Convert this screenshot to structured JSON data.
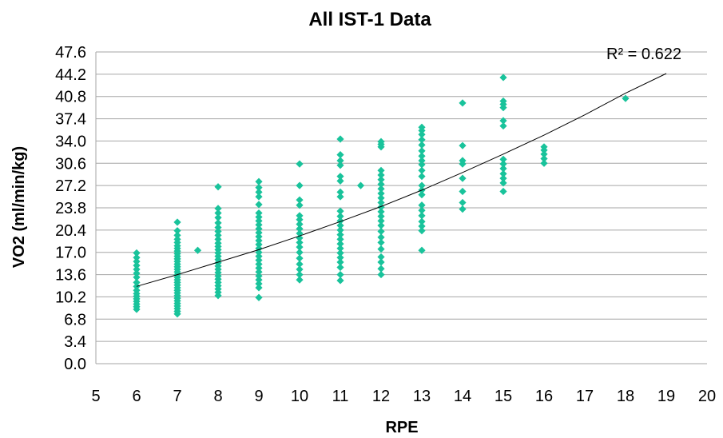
{
  "chart_data": {
    "type": "scatter",
    "title": "All IST-1 Data",
    "xlabel": "RPE",
    "ylabel": "VO2 (ml/min/kg)",
    "xlim": [
      5,
      20
    ],
    "ylim": [
      0,
      47.6
    ],
    "x_ticks": [
      "5",
      "6",
      "7",
      "8",
      "9",
      "10",
      "11",
      "12",
      "13",
      "14",
      "15",
      "16",
      "17",
      "18",
      "19",
      "20"
    ],
    "y_ticks": [
      "0.0",
      "3.4",
      "6.8",
      "10.2",
      "13.6",
      "17.0",
      "20.4",
      "23.8",
      "27.2",
      "30.6",
      "34.0",
      "37.4",
      "40.8",
      "44.2",
      "47.6"
    ],
    "grid": "horizontal",
    "legend": "none",
    "marker_color": "#19c39b",
    "trendline_color": "#000000",
    "trendline": {
      "type": "polynomial",
      "r_squared_label": "R² = 0.622",
      "points": [
        [
          6,
          11.8
        ],
        [
          7,
          13.6
        ],
        [
          8,
          15.5
        ],
        [
          9,
          17.4
        ],
        [
          10,
          19.5
        ],
        [
          11,
          21.7
        ],
        [
          12,
          24.0
        ],
        [
          13,
          26.5
        ],
        [
          14,
          29.2
        ],
        [
          15,
          32.0
        ],
        [
          16,
          34.9
        ],
        [
          17,
          38.0
        ],
        [
          18,
          41.3
        ],
        [
          19,
          44.3
        ]
      ]
    },
    "series": [
      {
        "values": [
          [
            6,
            8.3
          ],
          [
            6,
            8.7
          ],
          [
            6,
            9.1
          ],
          [
            6,
            9.5
          ],
          [
            6,
            9.9
          ],
          [
            6,
            10.3
          ],
          [
            6,
            10.7
          ],
          [
            6,
            11.2
          ],
          [
            6,
            11.8
          ],
          [
            6,
            12.4
          ],
          [
            6,
            13.2
          ],
          [
            6,
            13.8
          ],
          [
            6,
            14.4
          ],
          [
            6,
            15.0
          ],
          [
            6,
            15.6
          ],
          [
            6,
            16.2
          ],
          [
            6,
            16.9
          ],
          [
            7,
            7.6
          ],
          [
            7,
            8.0
          ],
          [
            7,
            8.4
          ],
          [
            7,
            8.8
          ],
          [
            7,
            9.2
          ],
          [
            7,
            9.6
          ],
          [
            7,
            10.0
          ],
          [
            7,
            10.4
          ],
          [
            7,
            10.8
          ],
          [
            7,
            11.2
          ],
          [
            7,
            11.6
          ],
          [
            7,
            12.0
          ],
          [
            7,
            12.4
          ],
          [
            7,
            12.8
          ],
          [
            7,
            13.2
          ],
          [
            7,
            13.6
          ],
          [
            7,
            14.0
          ],
          [
            7,
            14.4
          ],
          [
            7,
            14.8
          ],
          [
            7,
            15.2
          ],
          [
            7,
            15.6
          ],
          [
            7,
            16.0
          ],
          [
            7,
            16.4
          ],
          [
            7,
            16.8
          ],
          [
            7,
            17.2
          ],
          [
            7,
            17.6
          ],
          [
            7,
            18.0
          ],
          [
            7,
            18.5
          ],
          [
            7,
            19.0
          ],
          [
            7,
            19.6
          ],
          [
            7,
            20.3
          ],
          [
            7,
            21.6
          ],
          [
            7.5,
            17.3
          ],
          [
            8,
            10.4
          ],
          [
            8,
            10.9
          ],
          [
            8,
            11.4
          ],
          [
            8,
            11.9
          ],
          [
            8,
            12.4
          ],
          [
            8,
            12.9
          ],
          [
            8,
            13.4
          ],
          [
            8,
            13.9
          ],
          [
            8,
            14.4
          ],
          [
            8,
            14.9
          ],
          [
            8,
            15.4
          ],
          [
            8,
            15.9
          ],
          [
            8,
            16.4
          ],
          [
            8,
            16.9
          ],
          [
            8,
            17.4
          ],
          [
            8,
            17.9
          ],
          [
            8,
            18.4
          ],
          [
            8,
            19.0
          ],
          [
            8,
            19.6
          ],
          [
            8,
            20.2
          ],
          [
            8,
            20.8
          ],
          [
            8,
            21.5
          ],
          [
            8,
            22.3
          ],
          [
            8,
            23.0
          ],
          [
            8,
            23.7
          ],
          [
            8,
            27.0
          ],
          [
            9,
            10.1
          ],
          [
            9,
            11.6
          ],
          [
            9,
            12.2
          ],
          [
            9,
            12.8
          ],
          [
            9,
            13.4
          ],
          [
            9,
            14.0
          ],
          [
            9,
            14.6
          ],
          [
            9,
            15.2
          ],
          [
            9,
            15.8
          ],
          [
            9,
            16.4
          ],
          [
            9,
            17.0
          ],
          [
            9,
            17.6
          ],
          [
            9,
            18.2
          ],
          [
            9,
            18.8
          ],
          [
            9,
            19.4
          ],
          [
            9,
            20.0
          ],
          [
            9,
            20.6
          ],
          [
            9,
            21.2
          ],
          [
            9,
            21.8
          ],
          [
            9,
            22.4
          ],
          [
            9,
            23.0
          ],
          [
            9,
            24.3
          ],
          [
            9,
            25.5
          ],
          [
            9,
            26.2
          ],
          [
            9,
            26.9
          ],
          [
            9,
            27.8
          ],
          [
            10,
            12.8
          ],
          [
            10,
            13.6
          ],
          [
            10,
            14.4
          ],
          [
            10,
            15.2
          ],
          [
            10,
            16.1
          ],
          [
            10,
            17.0
          ],
          [
            10,
            17.8
          ],
          [
            10,
            18.5
          ],
          [
            10,
            19.2
          ],
          [
            10,
            19.9
          ],
          [
            10,
            20.6
          ],
          [
            10,
            21.3
          ],
          [
            10,
            22.0
          ],
          [
            10,
            22.6
          ],
          [
            10,
            24.2
          ],
          [
            10,
            25.0
          ],
          [
            10,
            27.2
          ],
          [
            10,
            30.5
          ],
          [
            11,
            12.7
          ],
          [
            11,
            13.6
          ],
          [
            11,
            14.7
          ],
          [
            11,
            15.5
          ],
          [
            11,
            16.2
          ],
          [
            11,
            16.9
          ],
          [
            11,
            17.6
          ],
          [
            11,
            18.3
          ],
          [
            11,
            19.0
          ],
          [
            11,
            19.7
          ],
          [
            11,
            20.4
          ],
          [
            11,
            21.1
          ],
          [
            11,
            21.8
          ],
          [
            11,
            22.5
          ],
          [
            11,
            23.3
          ],
          [
            11,
            25.5
          ],
          [
            11,
            26.2
          ],
          [
            11,
            27.9
          ],
          [
            11,
            28.6
          ],
          [
            11,
            30.3
          ],
          [
            11,
            31.0
          ],
          [
            11,
            31.9
          ],
          [
            11,
            34.3
          ],
          [
            11.5,
            27.2
          ],
          [
            12,
            13.6
          ],
          [
            12,
            14.5
          ],
          [
            12,
            15.5
          ],
          [
            12,
            16.3
          ],
          [
            12,
            17.5
          ],
          [
            12,
            18.5
          ],
          [
            12,
            19.3
          ],
          [
            12,
            20.2
          ],
          [
            12,
            21.1
          ],
          [
            12,
            21.8
          ],
          [
            12,
            22.5
          ],
          [
            12,
            23.2
          ],
          [
            12,
            23.9
          ],
          [
            12,
            24.6
          ],
          [
            12,
            25.3
          ],
          [
            12,
            26.0
          ],
          [
            12,
            26.7
          ],
          [
            12,
            27.4
          ],
          [
            12,
            28.1
          ],
          [
            12,
            28.8
          ],
          [
            12,
            29.5
          ],
          [
            12,
            33.1
          ],
          [
            12,
            33.5
          ],
          [
            12,
            33.9
          ],
          [
            13,
            17.3
          ],
          [
            13,
            20.3
          ],
          [
            13,
            21.0
          ],
          [
            13,
            21.7
          ],
          [
            13,
            22.6
          ],
          [
            13,
            23.4
          ],
          [
            13,
            24.2
          ],
          [
            13,
            25.8
          ],
          [
            13,
            26.5
          ],
          [
            13,
            27.2
          ],
          [
            13,
            28.6
          ],
          [
            13,
            29.5
          ],
          [
            13,
            30.4
          ],
          [
            13,
            31.0
          ],
          [
            13,
            31.7
          ],
          [
            13,
            32.5
          ],
          [
            13,
            33.4
          ],
          [
            13,
            34.2
          ],
          [
            13,
            35.0
          ],
          [
            13,
            35.6
          ],
          [
            13,
            36.1
          ],
          [
            14,
            23.6
          ],
          [
            14,
            24.6
          ],
          [
            14,
            26.3
          ],
          [
            14,
            28.3
          ],
          [
            14,
            30.5
          ],
          [
            14,
            31.0
          ],
          [
            14,
            33.3
          ],
          [
            14,
            39.8
          ],
          [
            15,
            26.3
          ],
          [
            15,
            27.6
          ],
          [
            15,
            28.3
          ],
          [
            15,
            29.0
          ],
          [
            15,
            29.8
          ],
          [
            15,
            30.5
          ],
          [
            15,
            31.2
          ],
          [
            15,
            36.3
          ],
          [
            15,
            37.1
          ],
          [
            15,
            39.1
          ],
          [
            15,
            39.6
          ],
          [
            15,
            40.1
          ],
          [
            15,
            43.7
          ],
          [
            16,
            30.6
          ],
          [
            16,
            31.3
          ],
          [
            16,
            32.0
          ],
          [
            16,
            32.6
          ],
          [
            16,
            33.1
          ],
          [
            18,
            40.5
          ]
        ]
      }
    ]
  }
}
